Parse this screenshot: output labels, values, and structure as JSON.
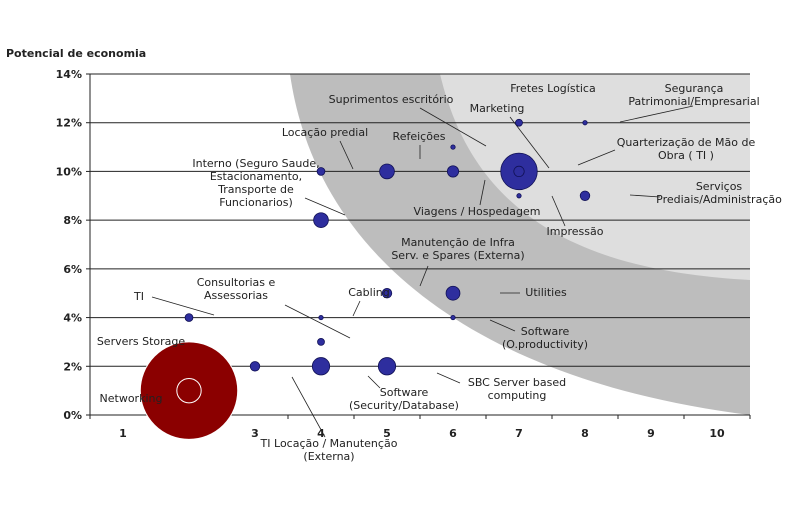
{
  "chart_data": {
    "type": "scatter",
    "bubble": true,
    "title": "",
    "xlabel": "",
    "ylabel": "Potencial de economia",
    "xlim": [
      0,
      10
    ],
    "ylim": [
      0,
      14
    ],
    "x_ticks": [
      "1",
      "2",
      "3",
      "4",
      "5",
      "6",
      "7",
      "8",
      "9",
      "10"
    ],
    "y_ticks": [
      "0%",
      "2%",
      "4%",
      "6%",
      "8%",
      "10%",
      "12%",
      "14%"
    ],
    "grid": "horizontal",
    "legend": "none",
    "colors": {
      "bubble": "#2e2e9e",
      "highlight": "#8b0000",
      "zone_dark": "#bdbdbd",
      "zone_light": "#dedede"
    },
    "points": [
      {
        "label": "Fretes Logística",
        "x": 7,
        "y": 12,
        "size": 0.8
      },
      {
        "label": "Segurança Patrimonial/Empresarial",
        "x": 8,
        "y": 12,
        "size": 0.5
      },
      {
        "label": "Suprimentos escritório",
        "x": 6,
        "y": 11,
        "size": 0.2
      },
      {
        "label": "Marketing",
        "x": 7,
        "y": 10,
        "size": 1.2
      },
      {
        "label": "Quarterização de Mão de Obra ( TI )",
        "x": 7,
        "y": 10,
        "size": 4.2
      },
      {
        "label": "Locação predial",
        "x": 4,
        "y": 10,
        "size": 0.9
      },
      {
        "label": "Refeições",
        "x": 5,
        "y": 10,
        "size": 1.7
      },
      {
        "label": "Interno (Seguro Saude, Estacionamento, Transporte de Funcionarios)",
        "x": 6,
        "y": 10,
        "size": 1.3
      },
      {
        "label": "Serviços Prediais/Administração",
        "x": 8,
        "y": 9,
        "size": 1.1
      },
      {
        "label": "Impressão",
        "x": 7,
        "y": 9,
        "size": 0.2
      },
      {
        "label": "Viagens / Hospedagem",
        "x": 4,
        "y": 8,
        "size": 1.7
      },
      {
        "label": "Manutenção de Infra Serv. e Spares (Externa)",
        "x": 5,
        "y": 5,
        "size": 1.1
      },
      {
        "label": "Utilities",
        "x": 6,
        "y": 5,
        "size": 1.6
      },
      {
        "label": "TI",
        "x": 2,
        "y": 4,
        "size": 0.9
      },
      {
        "label": "Cabling",
        "x": 4,
        "y": 4,
        "size": 0.2
      },
      {
        "label": "Software (O.productivity)",
        "x": 6,
        "y": 4,
        "size": 0.5
      },
      {
        "label": "Consultorias e Assessorias",
        "x": 4,
        "y": 3,
        "size": 0.8
      },
      {
        "label": "TI Locação / Manutenção (Externa)",
        "x": 3,
        "y": 2,
        "size": 1.1
      },
      {
        "label": "Software (Security/Database)",
        "x": 4,
        "y": 2,
        "size": 2.0
      },
      {
        "label": "SBC Server based computing",
        "x": 5,
        "y": 2,
        "size": 2.0
      },
      {
        "label": "Networking",
        "x": 2,
        "y": 1,
        "size": 2.8
      },
      {
        "label": "Servers Storage",
        "x": 2,
        "y": 1,
        "size": 11.2
      }
    ]
  }
}
